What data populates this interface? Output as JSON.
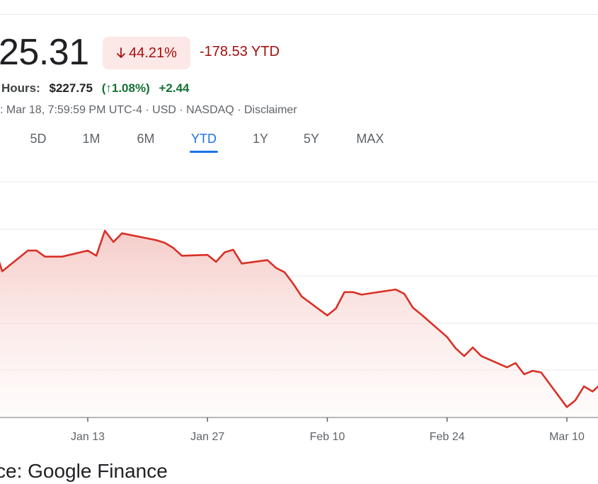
{
  "quote": {
    "price": "25.31",
    "change_pct": "44.21%",
    "change_ytd": "-178.53 YTD",
    "after_hours_label": "Hours:",
    "after_hours_price": "$227.75",
    "after_hours_pct": "(↑1.08%)",
    "after_hours_change": "+2.44",
    "meta": ": Mar 18, 7:59:59 PM UTC-4 · USD · NASDAQ · Disclaimer"
  },
  "range_tabs": [
    {
      "label": "5D"
    },
    {
      "label": "1M"
    },
    {
      "label": "6M"
    },
    {
      "label": "YTD",
      "active": true
    },
    {
      "label": "1Y"
    },
    {
      "label": "5Y"
    },
    {
      "label": "MAX"
    }
  ],
  "colors": {
    "line": "#d93025",
    "fill_top": "#f4c7c3",
    "down_text": "#a50e0e",
    "up_text": "#137333",
    "active_tab": "#1a73e8",
    "grid": "#e8eaed"
  },
  "chart_data": {
    "type": "area",
    "title": "",
    "xlabel": "",
    "ylabel": "",
    "x_tick_labels": [
      "Jan 13",
      "Jan 27",
      "Feb 10",
      "Feb 24",
      "Mar 10"
    ],
    "x_tick_dates": [
      "2025-01-13",
      "2025-01-27",
      "2025-02-10",
      "2025-02-24",
      "2025-03-10"
    ],
    "ylim": [
      210,
      480
    ],
    "grid": true,
    "series": [
      {
        "dates": [
          "2025-01-02",
          "2025-01-03",
          "2025-01-06",
          "2025-01-07",
          "2025-01-08",
          "2025-01-10",
          "2025-01-13",
          "2025-01-14",
          "2025-01-15",
          "2025-01-16",
          "2025-01-17",
          "2025-01-21",
          "2025-01-22",
          "2025-01-23",
          "2025-01-24",
          "2025-01-27",
          "2025-01-28",
          "2025-01-29",
          "2025-01-30",
          "2025-01-31",
          "2025-02-03",
          "2025-02-04",
          "2025-02-05",
          "2025-02-06",
          "2025-02-07",
          "2025-02-10",
          "2025-02-11",
          "2025-02-12",
          "2025-02-13",
          "2025-02-14",
          "2025-02-18",
          "2025-02-19",
          "2025-02-20",
          "2025-02-21",
          "2025-02-24",
          "2025-02-25",
          "2025-02-26",
          "2025-02-27",
          "2025-02-28",
          "2025-03-03",
          "2025-03-04",
          "2025-03-05",
          "2025-03-06",
          "2025-03-07",
          "2025-03-10",
          "2025-03-11",
          "2025-03-12",
          "2025-03-13",
          "2025-03-14"
        ],
        "values": [
          410,
          379,
          403,
          403,
          396,
          396,
          403,
          397,
          426,
          413,
          423,
          415,
          412,
          406,
          397,
          398,
          390,
          401,
          404,
          388,
          392,
          383,
          378,
          365,
          350,
          328,
          336,
          355,
          355,
          352,
          358,
          353,
          337,
          329,
          303,
          290,
          281,
          291,
          281,
          268,
          273,
          260,
          264,
          262,
          222,
          230,
          246,
          240,
          249
        ]
      }
    ]
  },
  "source_text": "ce: Google Finance"
}
